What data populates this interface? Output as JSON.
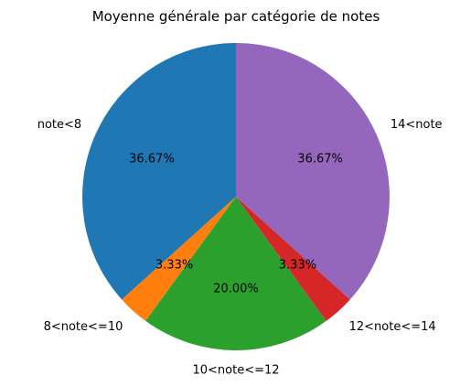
{
  "chart_data": {
    "type": "pie",
    "title": "Moyenne générale par catégorie de notes",
    "categories": [
      "note<8",
      "8<note<=10",
      "10<note<=12",
      "12<note<=14",
      "14<note"
    ],
    "values": [
      36.67,
      3.33,
      20.0,
      3.33,
      36.67
    ],
    "value_labels": [
      "36.67%",
      "3.33%",
      "20.00%",
      "3.33%",
      "36.67%"
    ],
    "colors": [
      "#1f77b4",
      "#ff7f0e",
      "#2ca02c",
      "#d62728",
      "#9467bd"
    ],
    "start_angle_deg": 90,
    "direction": "counterclockwise",
    "legend": "none"
  }
}
